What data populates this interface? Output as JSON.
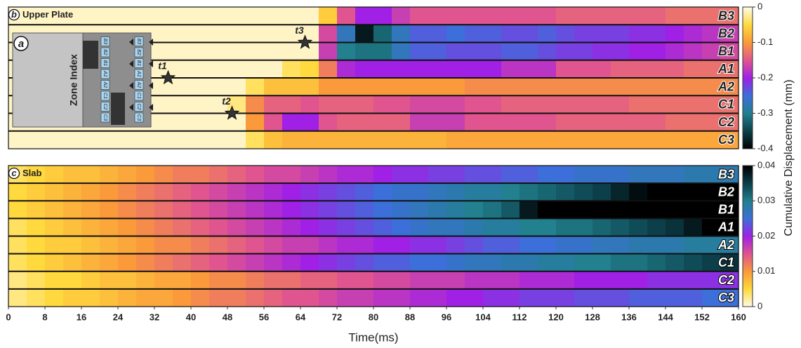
{
  "chart_data": [
    {
      "type": "heatmap",
      "tag": "b",
      "title": "Upper Plate",
      "xlim": [
        0,
        160
      ],
      "clim": [
        -0.4,
        0
      ],
      "cticks": [
        0,
        -0.1,
        -0.2,
        -0.3,
        -0.4
      ],
      "colormap": [
        "#000000",
        "#0c3f4a",
        "#22808f",
        "#3c6fd9",
        "#a020e6",
        "#e0558f",
        "#fa9a3a",
        "#ffd93d",
        "#fffbe8"
      ],
      "label_color": "#222222",
      "series": [
        {
          "name": "B3",
          "values": [
            -0.01,
            -0.01,
            -0.01,
            -0.01,
            -0.01,
            -0.01,
            -0.01,
            -0.01,
            -0.01,
            -0.01,
            -0.01,
            -0.01,
            -0.01,
            -0.01,
            -0.01,
            -0.01,
            -0.01,
            -0.06,
            -0.15,
            -0.2,
            -0.2,
            -0.17,
            -0.15,
            -0.15,
            -0.15,
            -0.15,
            -0.15,
            -0.15,
            -0.15,
            -0.15,
            -0.14,
            -0.14,
            -0.14,
            -0.14,
            -0.14,
            -0.14,
            -0.13,
            -0.13,
            -0.13,
            -0.13
          ]
        },
        {
          "name": "B2",
          "values": [
            -0.01,
            -0.01,
            -0.01,
            -0.01,
            -0.01,
            -0.01,
            -0.01,
            -0.01,
            -0.01,
            -0.01,
            -0.01,
            -0.01,
            -0.01,
            -0.01,
            -0.01,
            -0.01,
            -0.01,
            -0.16,
            -0.27,
            -0.38,
            -0.32,
            -0.27,
            -0.24,
            -0.24,
            -0.25,
            -0.24,
            -0.24,
            -0.23,
            -0.23,
            -0.24,
            -0.23,
            -0.22,
            -0.22,
            -0.22,
            -0.21,
            -0.21,
            -0.2,
            -0.19,
            -0.18,
            -0.17
          ]
        },
        {
          "name": "B1",
          "values": [
            -0.01,
            -0.01,
            -0.01,
            -0.01,
            -0.01,
            -0.01,
            -0.01,
            -0.01,
            -0.01,
            -0.01,
            -0.01,
            -0.01,
            -0.01,
            -0.01,
            -0.01,
            -0.01,
            -0.01,
            -0.17,
            -0.3,
            -0.31,
            -0.31,
            -0.27,
            -0.24,
            -0.24,
            -0.23,
            -0.23,
            -0.23,
            -0.24,
            -0.24,
            -0.23,
            -0.22,
            -0.22,
            -0.21,
            -0.21,
            -0.2,
            -0.2,
            -0.19,
            -0.18,
            -0.17,
            -0.16
          ]
        },
        {
          "name": "A1",
          "values": [
            -0.01,
            -0.01,
            -0.01,
            -0.01,
            -0.01,
            -0.01,
            -0.01,
            -0.01,
            -0.01,
            -0.01,
            -0.01,
            -0.01,
            -0.01,
            -0.01,
            -0.01,
            -0.04,
            -0.05,
            -0.12,
            -0.19,
            -0.2,
            -0.2,
            -0.2,
            -0.2,
            -0.2,
            -0.2,
            -0.2,
            -0.2,
            -0.18,
            -0.18,
            -0.18,
            -0.15,
            -0.15,
            -0.15,
            -0.14,
            -0.14,
            -0.14,
            -0.14,
            -0.13,
            -0.13,
            -0.13
          ]
        },
        {
          "name": "A2",
          "values": [
            -0.01,
            -0.01,
            -0.01,
            -0.01,
            -0.01,
            -0.01,
            -0.01,
            -0.01,
            -0.01,
            -0.01,
            -0.01,
            -0.01,
            -0.01,
            -0.04,
            -0.07,
            -0.07,
            -0.07,
            -0.1,
            -0.1,
            -0.1,
            -0.1,
            -0.1,
            -0.1,
            -0.1,
            -0.1,
            -0.11,
            -0.11,
            -0.11,
            -0.11,
            -0.11,
            -0.11,
            -0.11,
            -0.11,
            -0.11,
            -0.11,
            -0.11,
            -0.11,
            -0.11,
            -0.11,
            -0.11
          ]
        },
        {
          "name": "C1",
          "values": [
            -0.01,
            -0.01,
            -0.01,
            -0.01,
            -0.01,
            -0.01,
            -0.01,
            -0.01,
            -0.01,
            -0.01,
            -0.01,
            -0.01,
            -0.03,
            -0.11,
            -0.14,
            -0.14,
            -0.15,
            -0.14,
            -0.14,
            -0.14,
            -0.15,
            -0.15,
            -0.16,
            -0.16,
            -0.16,
            -0.15,
            -0.15,
            -0.14,
            -0.14,
            -0.14,
            -0.14,
            -0.14,
            -0.14,
            -0.14,
            -0.13,
            -0.13,
            -0.13,
            -0.13,
            -0.13,
            -0.13
          ]
        },
        {
          "name": "C2",
          "values": [
            -0.01,
            -0.01,
            -0.01,
            -0.01,
            -0.01,
            -0.01,
            -0.01,
            -0.01,
            -0.01,
            -0.01,
            -0.01,
            -0.01,
            -0.01,
            -0.1,
            -0.15,
            -0.2,
            -0.2,
            -0.15,
            -0.14,
            -0.14,
            -0.14,
            -0.14,
            -0.17,
            -0.17,
            -0.17,
            -0.15,
            -0.15,
            -0.15,
            -0.15,
            -0.15,
            -0.14,
            -0.14,
            -0.14,
            -0.14,
            -0.14,
            -0.14,
            -0.13,
            -0.13,
            -0.13,
            -0.13
          ]
        },
        {
          "name": "C3",
          "values": [
            -0.01,
            -0.01,
            -0.01,
            -0.01,
            -0.01,
            -0.01,
            -0.01,
            -0.01,
            -0.01,
            -0.01,
            -0.01,
            -0.01,
            -0.01,
            -0.04,
            -0.07,
            -0.08,
            -0.08,
            -0.08,
            -0.08,
            -0.08,
            -0.08,
            -0.08,
            -0.08,
            -0.08,
            -0.09,
            -0.09,
            -0.09,
            -0.09,
            -0.09,
            -0.09,
            -0.09,
            -0.09,
            -0.09,
            -0.09,
            -0.09,
            -0.09,
            -0.09,
            -0.09,
            -0.09,
            -0.09
          ]
        }
      ],
      "annotations": [
        {
          "text": "t1",
          "x": 35,
          "row": "A1"
        },
        {
          "text": "t2",
          "x": 49,
          "row": "C1"
        },
        {
          "text": "t3",
          "x": 65,
          "row": "B2"
        }
      ]
    },
    {
      "type": "heatmap",
      "tag": "c",
      "title": "Slab",
      "xlim": [
        0,
        160
      ],
      "clim": [
        0,
        0.04
      ],
      "cticks": [
        0.04,
        0.03,
        0.02,
        0.01,
        0
      ],
      "colormap": [
        "#fffbe8",
        "#ffd93d",
        "#fa9a3a",
        "#e0558f",
        "#a020e6",
        "#3c6fd9",
        "#22808f",
        "#0c3f4a",
        "#000000"
      ],
      "label_color": "#ffffff",
      "xticks": [
        0,
        8,
        16,
        24,
        32,
        40,
        48,
        56,
        64,
        72,
        80,
        88,
        96,
        104,
        112,
        120,
        128,
        136,
        144,
        152,
        160
      ],
      "x_label": "Time(ms)",
      "series": [
        {
          "name": "B3",
          "values": [
            0.004,
            0.005,
            0.006,
            0.007,
            0.007,
            0.008,
            0.009,
            0.01,
            0.011,
            0.012,
            0.012,
            0.013,
            0.014,
            0.015,
            0.016,
            0.016,
            0.017,
            0.018,
            0.019,
            0.019,
            0.02,
            0.021,
            0.021,
            0.022,
            0.022,
            0.023,
            0.023,
            0.024,
            0.024,
            0.025,
            0.025,
            0.026,
            0.026,
            0.026,
            0.027,
            0.027,
            0.027,
            0.028,
            0.028,
            0.028
          ]
        },
        {
          "name": "B2",
          "values": [
            0.005,
            0.006,
            0.007,
            0.008,
            0.009,
            0.01,
            0.011,
            0.012,
            0.013,
            0.014,
            0.015,
            0.016,
            0.017,
            0.018,
            0.019,
            0.02,
            0.021,
            0.022,
            0.023,
            0.024,
            0.025,
            0.026,
            0.026,
            0.027,
            0.028,
            0.029,
            0.029,
            0.03,
            0.031,
            0.032,
            0.033,
            0.034,
            0.035,
            0.037,
            0.039,
            0.04,
            0.04,
            0.04,
            0.04,
            0.04
          ]
        },
        {
          "name": "B1",
          "values": [
            0.005,
            0.006,
            0.007,
            0.008,
            0.009,
            0.01,
            0.011,
            0.012,
            0.013,
            0.014,
            0.015,
            0.016,
            0.017,
            0.018,
            0.019,
            0.02,
            0.021,
            0.022,
            0.023,
            0.024,
            0.025,
            0.026,
            0.027,
            0.028,
            0.029,
            0.03,
            0.031,
            0.033,
            0.038,
            0.04,
            0.04,
            0.04,
            0.04,
            0.04,
            0.04,
            0.04,
            0.04,
            0.04,
            0.04,
            0.04
          ]
        },
        {
          "name": "A1",
          "values": [
            0.004,
            0.005,
            0.006,
            0.007,
            0.008,
            0.009,
            0.01,
            0.011,
            0.012,
            0.013,
            0.014,
            0.015,
            0.016,
            0.017,
            0.018,
            0.019,
            0.02,
            0.021,
            0.022,
            0.023,
            0.024,
            0.025,
            0.026,
            0.027,
            0.027,
            0.028,
            0.029,
            0.029,
            0.03,
            0.03,
            0.031,
            0.031,
            0.032,
            0.033,
            0.034,
            0.035,
            0.036,
            0.038,
            0.04,
            0.04
          ]
        },
        {
          "name": "A2",
          "values": [
            0.004,
            0.005,
            0.006,
            0.006,
            0.007,
            0.008,
            0.009,
            0.01,
            0.011,
            0.011,
            0.012,
            0.013,
            0.014,
            0.015,
            0.016,
            0.017,
            0.017,
            0.018,
            0.019,
            0.019,
            0.02,
            0.02,
            0.021,
            0.021,
            0.022,
            0.023,
            0.024,
            0.024,
            0.025,
            0.025,
            0.026,
            0.026,
            0.027,
            0.027,
            0.028,
            0.028,
            0.028,
            0.029,
            0.029,
            0.029
          ]
        },
        {
          "name": "C1",
          "values": [
            0.004,
            0.005,
            0.006,
            0.007,
            0.008,
            0.009,
            0.01,
            0.011,
            0.012,
            0.013,
            0.014,
            0.015,
            0.016,
            0.017,
            0.018,
            0.019,
            0.02,
            0.021,
            0.022,
            0.023,
            0.024,
            0.024,
            0.025,
            0.025,
            0.026,
            0.027,
            0.027,
            0.028,
            0.028,
            0.029,
            0.029,
            0.03,
            0.03,
            0.031,
            0.031,
            0.032,
            0.033,
            0.034,
            0.035,
            0.036
          ]
        },
        {
          "name": "C2",
          "values": [
            0.003,
            0.004,
            0.005,
            0.005,
            0.006,
            0.007,
            0.007,
            0.008,
            0.009,
            0.009,
            0.01,
            0.011,
            0.011,
            0.012,
            0.013,
            0.013,
            0.014,
            0.014,
            0.015,
            0.015,
            0.016,
            0.016,
            0.017,
            0.017,
            0.017,
            0.018,
            0.018,
            0.018,
            0.019,
            0.019,
            0.019,
            0.02,
            0.02,
            0.02,
            0.02,
            0.021,
            0.021,
            0.021,
            0.021,
            0.021
          ]
        },
        {
          "name": "C3",
          "values": [
            0.003,
            0.004,
            0.005,
            0.006,
            0.006,
            0.007,
            0.008,
            0.009,
            0.009,
            0.01,
            0.011,
            0.012,
            0.012,
            0.013,
            0.014,
            0.015,
            0.015,
            0.016,
            0.017,
            0.017,
            0.018,
            0.018,
            0.019,
            0.019,
            0.02,
            0.02,
            0.021,
            0.021,
            0.022,
            0.022,
            0.022,
            0.023,
            0.023,
            0.023,
            0.024,
            0.024,
            0.024,
            0.024,
            0.025,
            0.025
          ]
        }
      ]
    }
  ],
  "colorbar_label": "Cumulative Displacement (mm)",
  "inset": {
    "tag": "a",
    "label": "Zone Index",
    "zones": [
      "B3",
      "B2",
      "B1",
      "A1",
      "A2",
      "C1",
      "C2",
      "C3"
    ]
  }
}
